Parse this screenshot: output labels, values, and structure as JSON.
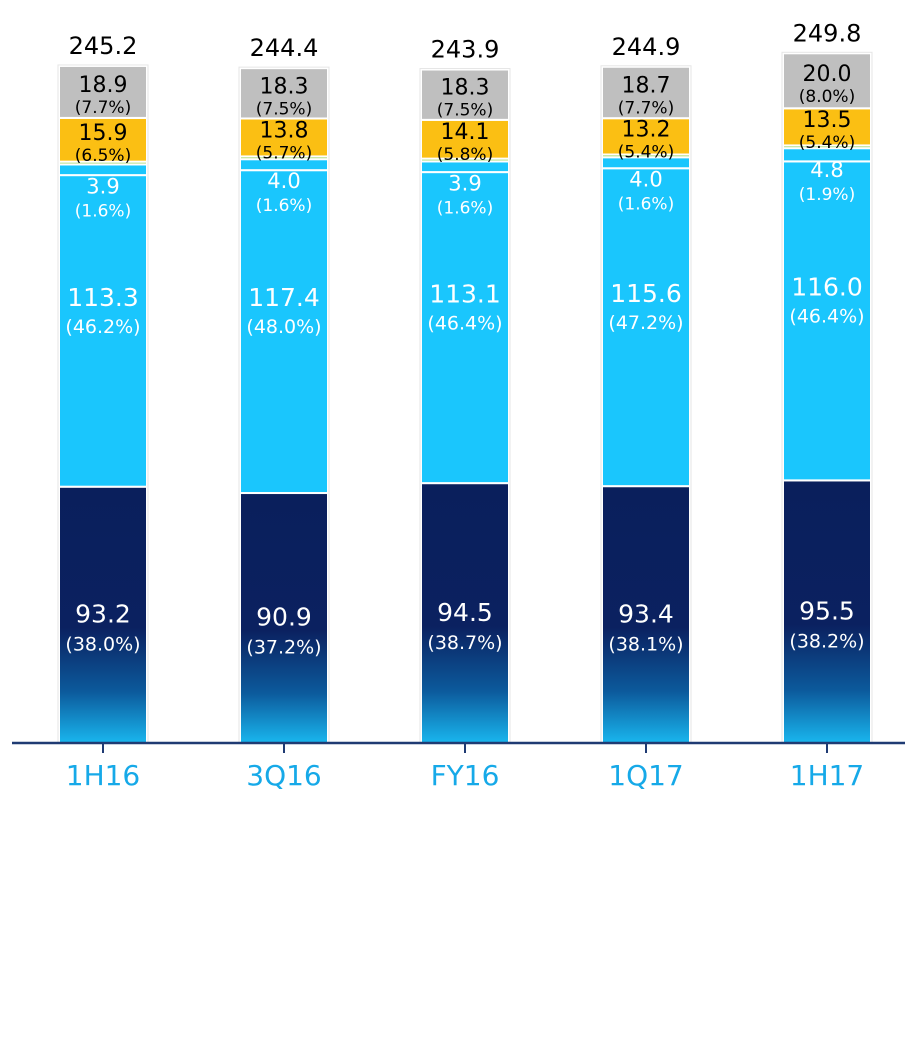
{
  "chart_data": {
    "type": "bar",
    "stacked": true,
    "categories": [
      "1H16",
      "3Q16",
      "FY16",
      "1Q17",
      "1H17"
    ],
    "totals": [
      245.2,
      244.4,
      243.9,
      244.9,
      249.8
    ],
    "total_labels": [
      "245.2",
      "244.4",
      "243.9",
      "244.9",
      "249.8"
    ],
    "series": [
      {
        "color": "#0a1f5c",
        "values": [
          93.2,
          90.9,
          94.5,
          93.4,
          95.5
        ],
        "value_labels": [
          "93.2",
          "90.9",
          "94.5",
          "93.4",
          "95.5"
        ],
        "pct_labels": [
          "(38.0%)",
          "(37.2%)",
          "(38.7%)",
          "(38.1%)",
          "(38.2%)"
        ],
        "text_color": "#ffffff"
      },
      {
        "color": "#1ac6fd",
        "values": [
          113.3,
          117.4,
          113.1,
          115.6,
          116.0
        ],
        "value_labels": [
          "113.3",
          "117.4",
          "113.1",
          "115.6",
          "116.0"
        ],
        "pct_labels": [
          "(46.2%)",
          "(48.0%)",
          "(46.4%)",
          "(47.2%)",
          "(46.4%)"
        ],
        "text_color": "#ffffff"
      },
      {
        "color": "#1ac6fd",
        "values": [
          3.9,
          4.0,
          3.9,
          4.0,
          4.8
        ],
        "value_labels": [
          "3.9",
          "4.0",
          "3.9",
          "4.0",
          "4.8"
        ],
        "pct_labels": [
          "(1.6%)",
          "(1.6%)",
          "(1.6%)",
          "(1.6%)",
          "(1.9%)"
        ],
        "text_color": "#ffffff"
      },
      {
        "color": "#92d050",
        "values": [
          1.0,
          1.0,
          1.0,
          1.0,
          1.0
        ],
        "value_labels": [
          "",
          "",
          "",
          "",
          ""
        ],
        "pct_labels": [
          "",
          "",
          "",
          "",
          ""
        ],
        "text_color": "#ffffff"
      },
      {
        "color": "#fbbf13",
        "values": [
          15.9,
          13.8,
          14.1,
          13.2,
          13.5
        ],
        "value_labels": [
          "15.9",
          "13.8",
          "14.1",
          "13.2",
          "13.5"
        ],
        "pct_labels": [
          "(6.5%)",
          "(5.7%)",
          "(5.8%)",
          "(5.4%)",
          "(5.4%)"
        ],
        "text_color": "#000000"
      },
      {
        "color": "#bfbfbf",
        "values": [
          18.9,
          18.3,
          18.3,
          18.7,
          20.0
        ],
        "value_labels": [
          "18.9",
          "18.3",
          "18.3",
          "18.7",
          "20.0"
        ],
        "pct_labels": [
          "(7.7%)",
          "(7.5%)",
          "(7.5%)",
          "(7.7%)",
          "(8.0%)"
        ],
        "text_color": "#000000"
      }
    ],
    "axis_color": "#1f3b73",
    "category_label_color": "#16a9e8"
  }
}
